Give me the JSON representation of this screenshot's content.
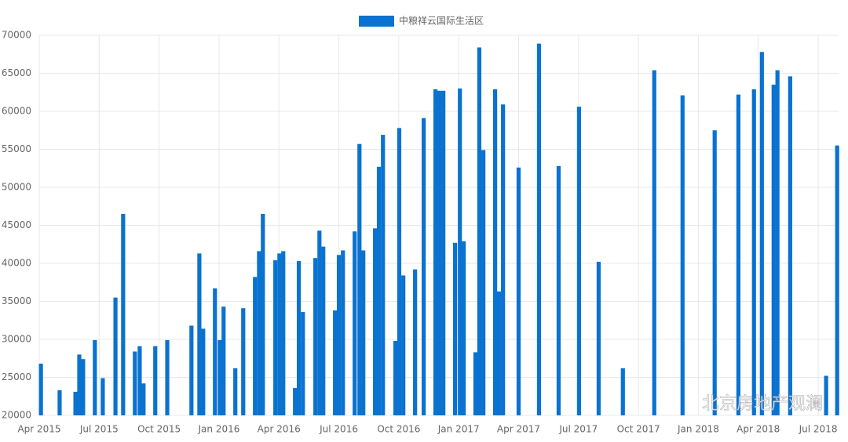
{
  "chart_data": {
    "type": "bar",
    "legend": "top",
    "series": [
      {
        "name": "中粮祥云国际生活区",
        "color": "#0a72d0",
        "x": [
          2015.257,
          2015.335,
          2015.401,
          2015.417,
          2015.433,
          2015.482,
          2015.515,
          2015.568,
          2015.6,
          2015.649,
          2015.669,
          2015.685,
          2015.734,
          2015.784,
          2015.885,
          2015.918,
          2015.934,
          2015.983,
          2016.003,
          2016.019,
          2016.068,
          2016.101,
          2016.15,
          2016.167,
          2016.183,
          2016.235,
          2016.252,
          2016.268,
          2016.317,
          2016.333,
          2016.35,
          2016.402,
          2016.419,
          2016.435,
          2016.484,
          2016.5,
          2016.517,
          2016.566,
          2016.586,
          2016.602,
          2016.651,
          2016.667,
          2016.684,
          2016.736,
          2016.752,
          2016.769,
          2016.818,
          2016.854,
          2016.903,
          2016.919,
          2016.936,
          2016.985,
          2017.005,
          2017.021,
          2017.07,
          2017.086,
          2017.103,
          2017.152,
          2017.168,
          2017.185,
          2017.25,
          2017.335,
          2017.417,
          2017.502,
          2017.584,
          2017.685,
          2017.816,
          2017.934,
          2018.068,
          2018.167,
          2018.232,
          2018.265,
          2018.314,
          2018.33,
          2018.383,
          2018.533,
          2018.579
        ],
        "values": [
          26800,
          23300,
          23100,
          28000,
          27400,
          29900,
          24900,
          35500,
          46500,
          28400,
          29100,
          24200,
          29100,
          29900,
          31800,
          41300,
          31400,
          36700,
          29900,
          34300,
          26200,
          34100,
          38200,
          41600,
          46500,
          40400,
          41300,
          41600,
          23600,
          40300,
          33600,
          40700,
          44300,
          42200,
          33800,
          41100,
          41700,
          44200,
          55700,
          41700,
          44600,
          52700,
          56900,
          29800,
          57800,
          38400,
          39200,
          59100,
          62900,
          62700,
          62700,
          42700,
          63000,
          42900,
          28300,
          68400,
          54900,
          62900,
          36300,
          60900,
          52600,
          68900,
          52800,
          60600,
          40200,
          26200,
          65400,
          62100,
          57500,
          62200,
          62900,
          67800,
          63500,
          65400,
          64600,
          25200,
          55500
        ]
      }
    ],
    "xlim": [
      2015.25,
      2018.585
    ],
    "xticks": [
      {
        "value": 2015.25,
        "label": "Apr 2015"
      },
      {
        "value": 2015.5,
        "label": "Jul 2015"
      },
      {
        "value": 2015.75,
        "label": "Oct 2015"
      },
      {
        "value": 2016,
        "label": "Jan 2016"
      },
      {
        "value": 2016.25,
        "label": "Apr 2016"
      },
      {
        "value": 2016.5,
        "label": "Jul 2016"
      },
      {
        "value": 2016.75,
        "label": "Oct 2016"
      },
      {
        "value": 2017,
        "label": "Jan 2017"
      },
      {
        "value": 2017.25,
        "label": "Apr 2017"
      },
      {
        "value": 2017.5,
        "label": "Jul 2017"
      },
      {
        "value": 2017.75,
        "label": "Oct 2017"
      },
      {
        "value": 2018,
        "label": "Jan 2018"
      },
      {
        "value": 2018.25,
        "label": "Apr 2018"
      },
      {
        "value": 2018.5,
        "label": "Jul 2018"
      }
    ],
    "ylim": [
      20000,
      70000
    ],
    "yticks": [
      20000,
      25000,
      30000,
      35000,
      40000,
      45000,
      50000,
      55000,
      60000,
      65000,
      70000
    ],
    "grid": true,
    "watermark": "北京房地产观澜"
  }
}
